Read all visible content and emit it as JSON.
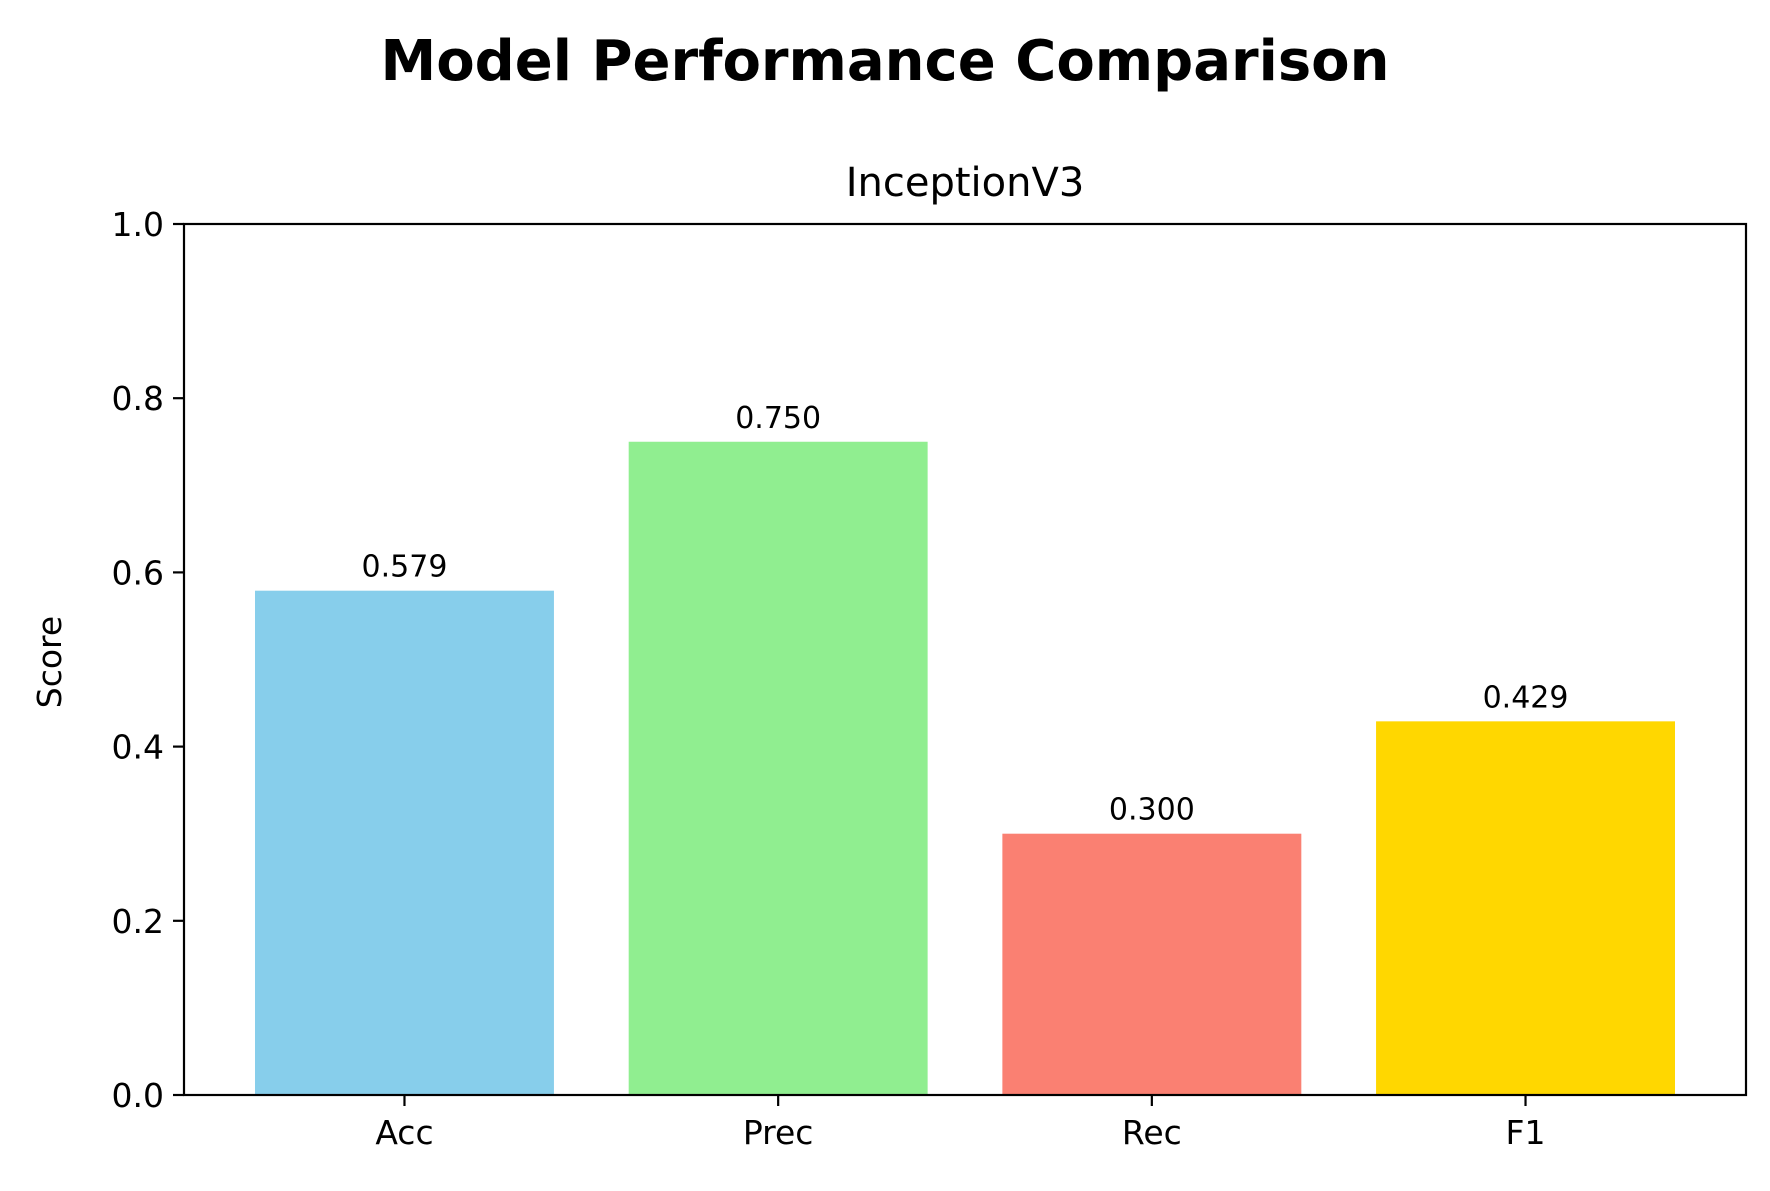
{
  "suptitle": "Model Performance Comparison",
  "chart_data": {
    "type": "bar",
    "title": "InceptionV3",
    "xlabel": "",
    "ylabel": "Score",
    "categories": [
      "Acc",
      "Prec",
      "Rec",
      "F1"
    ],
    "values": [
      0.579,
      0.75,
      0.3,
      0.429
    ],
    "value_labels": [
      "0.579",
      "0.750",
      "0.300",
      "0.429"
    ],
    "colors": [
      "#87ceeb",
      "#90ee90",
      "#fa8072",
      "#ffd700"
    ],
    "ylim": [
      0,
      1.0
    ],
    "yticks": [
      0.0,
      0.2,
      0.4,
      0.6,
      0.8,
      1.0
    ],
    "ytick_labels": [
      "0.0",
      "0.2",
      "0.4",
      "0.6",
      "0.8",
      "1.0"
    ],
    "grid": false,
    "legend": "none"
  }
}
